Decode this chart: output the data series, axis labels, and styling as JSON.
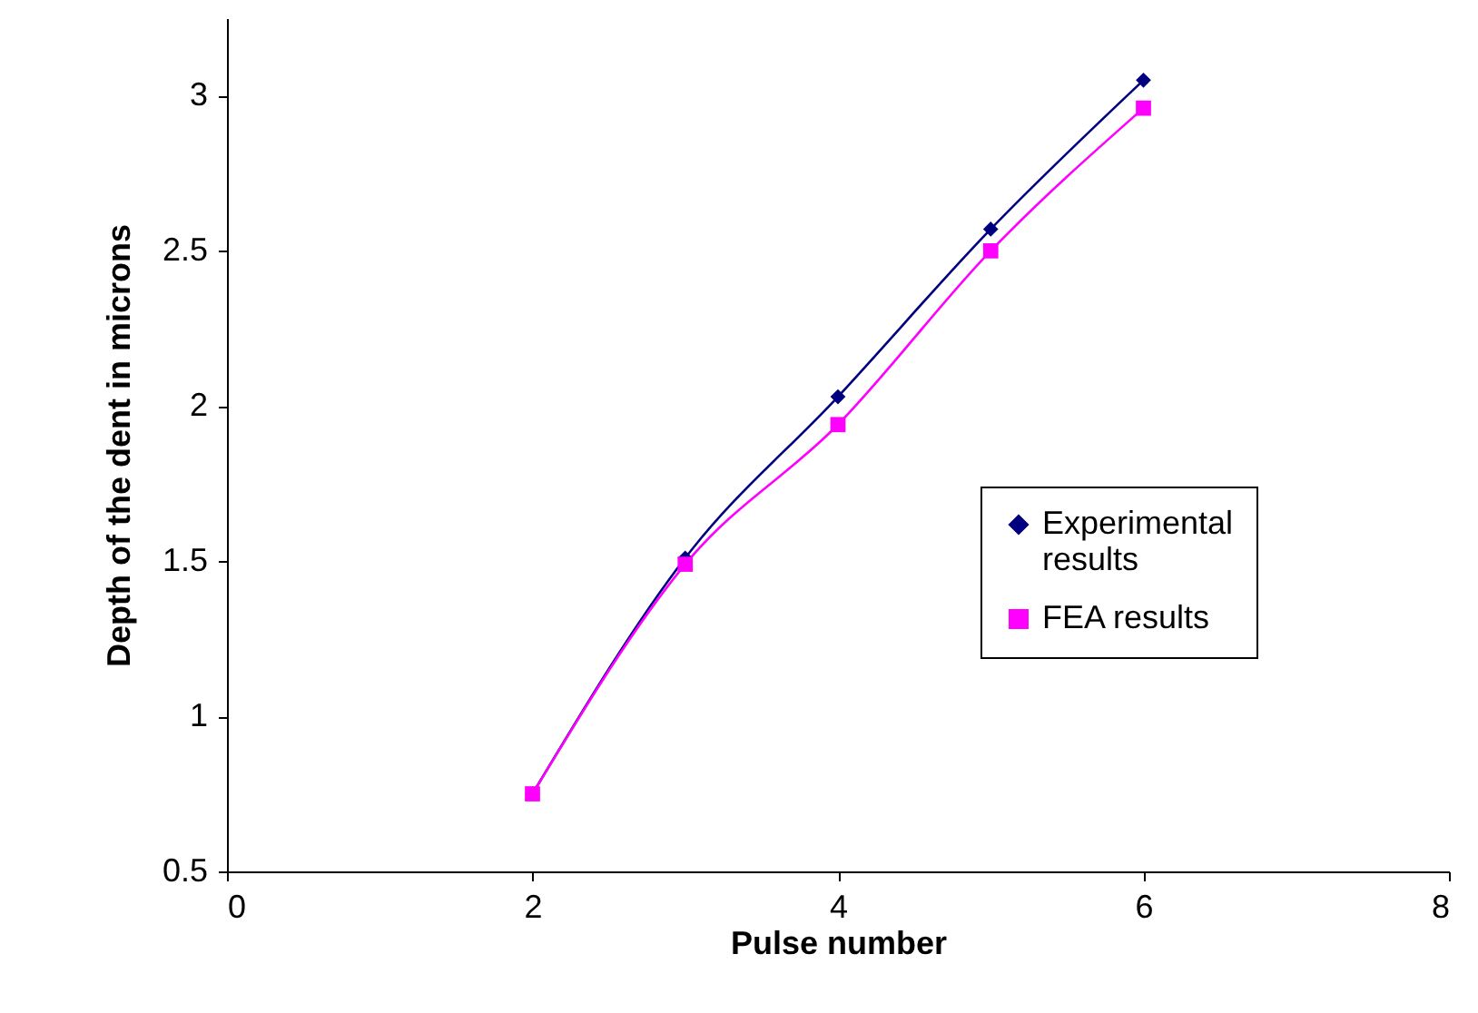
{
  "chart_data": {
    "type": "line",
    "xlabel": "Pulse number",
    "ylabel": "Depth of the dent in microns",
    "x": [
      2,
      3,
      4,
      5,
      6
    ],
    "series": [
      {
        "name": "Experimental results",
        "color": "#000080",
        "marker": "diamond",
        "values": [
          0.75,
          1.51,
          2.03,
          2.57,
          3.05
        ]
      },
      {
        "name": "FEA results",
        "color": "#ff00ff",
        "marker": "square",
        "values": [
          0.75,
          1.49,
          1.94,
          2.5,
          2.96
        ]
      }
    ],
    "xlim": [
      0,
      8
    ],
    "xticks": [
      0,
      2,
      4,
      6,
      8
    ],
    "ylim": [
      0.5,
      3.25
    ],
    "yticks": [
      0.5,
      1,
      1.5,
      2,
      2.5,
      3
    ],
    "grid": false,
    "legend": "right"
  }
}
